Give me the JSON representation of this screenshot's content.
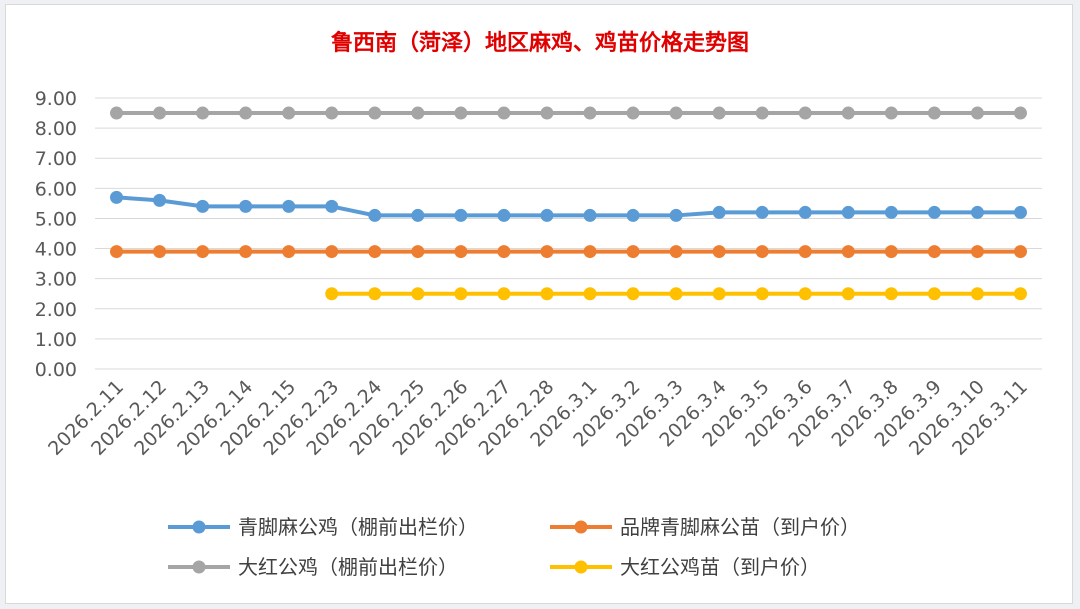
{
  "chart_data": {
    "type": "line",
    "title": "鲁西南（菏泽）地区麻鸡、鸡苗价格走势图",
    "title_color": "#e00000",
    "xlabel": "",
    "ylabel": "",
    "ylim": [
      0,
      9
    ],
    "y_ticks": [
      "0.00",
      "1.00",
      "2.00",
      "3.00",
      "4.00",
      "5.00",
      "6.00",
      "7.00",
      "8.00",
      "9.00"
    ],
    "grid": "horizontal",
    "legend_position": "bottom",
    "categories": [
      "2026.2.11",
      "2026.2.12",
      "2026.2.13",
      "2026.2.14",
      "2026.2.15",
      "2026.2.23",
      "2026.2.24",
      "2026.2.25",
      "2026.2.26",
      "2026.2.27",
      "2026.2.28",
      "2026.3.1",
      "2026.3.2",
      "2026.3.3",
      "2026.3.4",
      "2026.3.5",
      "2026.3.6",
      "2026.3.7",
      "2026.3.8",
      "2026.3.9",
      "2026.3.10",
      "2026.3.11"
    ],
    "series": [
      {
        "name": "青脚麻公鸡（棚前出栏价）",
        "color": "#5b9bd5",
        "values": [
          5.7,
          5.6,
          5.4,
          5.4,
          5.4,
          5.4,
          5.1,
          5.1,
          5.1,
          5.1,
          5.1,
          5.1,
          5.1,
          5.1,
          5.2,
          5.2,
          5.2,
          5.2,
          5.2,
          5.2,
          5.2,
          5.2
        ]
      },
      {
        "name": "品牌青脚麻公苗（到户价）",
        "color": "#ed7d31",
        "values": [
          3.9,
          3.9,
          3.9,
          3.9,
          3.9,
          3.9,
          3.9,
          3.9,
          3.9,
          3.9,
          3.9,
          3.9,
          3.9,
          3.9,
          3.9,
          3.9,
          3.9,
          3.9,
          3.9,
          3.9,
          3.9,
          3.9
        ]
      },
      {
        "name": "大红公鸡（棚前出栏价）",
        "color": "#a5a5a5",
        "values": [
          8.5,
          8.5,
          8.5,
          8.5,
          8.5,
          8.5,
          8.5,
          8.5,
          8.5,
          8.5,
          8.5,
          8.5,
          8.5,
          8.5,
          8.5,
          8.5,
          8.5,
          8.5,
          8.5,
          8.5,
          8.5,
          8.5
        ]
      },
      {
        "name": "大红公鸡苗（到户价）",
        "color": "#ffc000",
        "values": [
          null,
          null,
          null,
          null,
          null,
          2.5,
          2.5,
          2.5,
          2.5,
          2.5,
          2.5,
          2.5,
          2.5,
          2.5,
          2.5,
          2.5,
          2.5,
          2.5,
          2.5,
          2.5,
          2.5,
          2.5
        ]
      }
    ]
  }
}
